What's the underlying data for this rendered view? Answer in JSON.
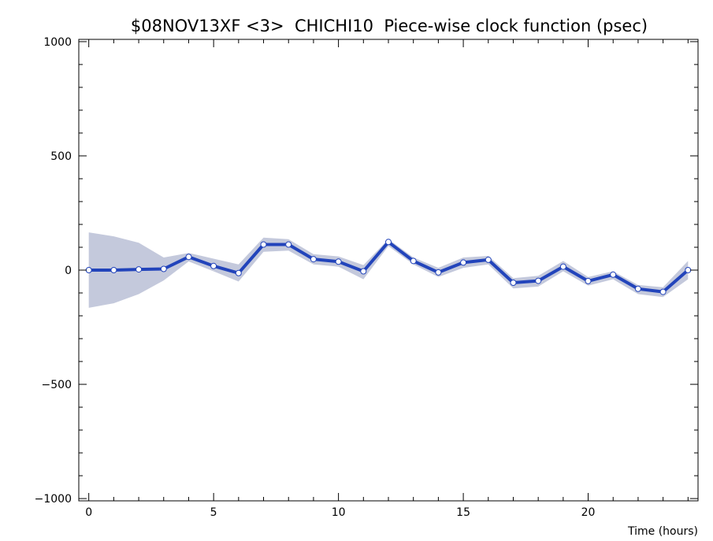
{
  "chart_data": {
    "type": "line",
    "title": "$08NOV13XF <3>  CHICHI10  Piece-wise clock function (psec)",
    "xlabel": "Time (hours)",
    "ylabel": "",
    "xlim": [
      -0.4,
      24.4
    ],
    "ylim": [
      -1010,
      1010
    ],
    "xticks": [
      0,
      5,
      10,
      15,
      20
    ],
    "xtick_labels": [
      "0",
      "5",
      "10",
      "15",
      "20"
    ],
    "yticks": [
      1000,
      500,
      0,
      -500,
      -1000
    ],
    "ytick_labels": [
      "1000",
      "500",
      "0",
      "−500",
      "−1000"
    ],
    "grid": false,
    "colors": {
      "line": "#2244bb",
      "band": "#c4c9dc",
      "marker_fill": "#ffffff",
      "marker_stroke": "#2244bb",
      "axis": "#000000"
    },
    "series": [
      {
        "x": [
          0,
          1,
          2,
          3,
          4,
          5,
          6,
          7,
          8,
          9,
          10,
          11,
          12,
          13,
          14,
          15,
          16,
          17,
          18,
          19,
          20,
          21,
          22,
          23,
          24
        ],
        "values": [
          0,
          0,
          3,
          5,
          58,
          18,
          -13,
          112,
          112,
          48,
          37,
          -5,
          123,
          40,
          -10,
          33,
          45,
          -55,
          -47,
          15,
          -48,
          -20,
          -82,
          -95,
          0
        ],
        "upper": [
          165,
          148,
          120,
          55,
          75,
          50,
          25,
          142,
          135,
          70,
          60,
          22,
          135,
          55,
          10,
          55,
          62,
          -35,
          -25,
          40,
          -30,
          -5,
          -65,
          -75,
          40
        ],
        "lower": [
          -165,
          -145,
          -105,
          -45,
          38,
          -5,
          -50,
          80,
          85,
          25,
          15,
          -40,
          105,
          25,
          -30,
          10,
          25,
          -80,
          -72,
          -5,
          -68,
          -40,
          -105,
          -118,
          -40
        ]
      }
    ]
  }
}
